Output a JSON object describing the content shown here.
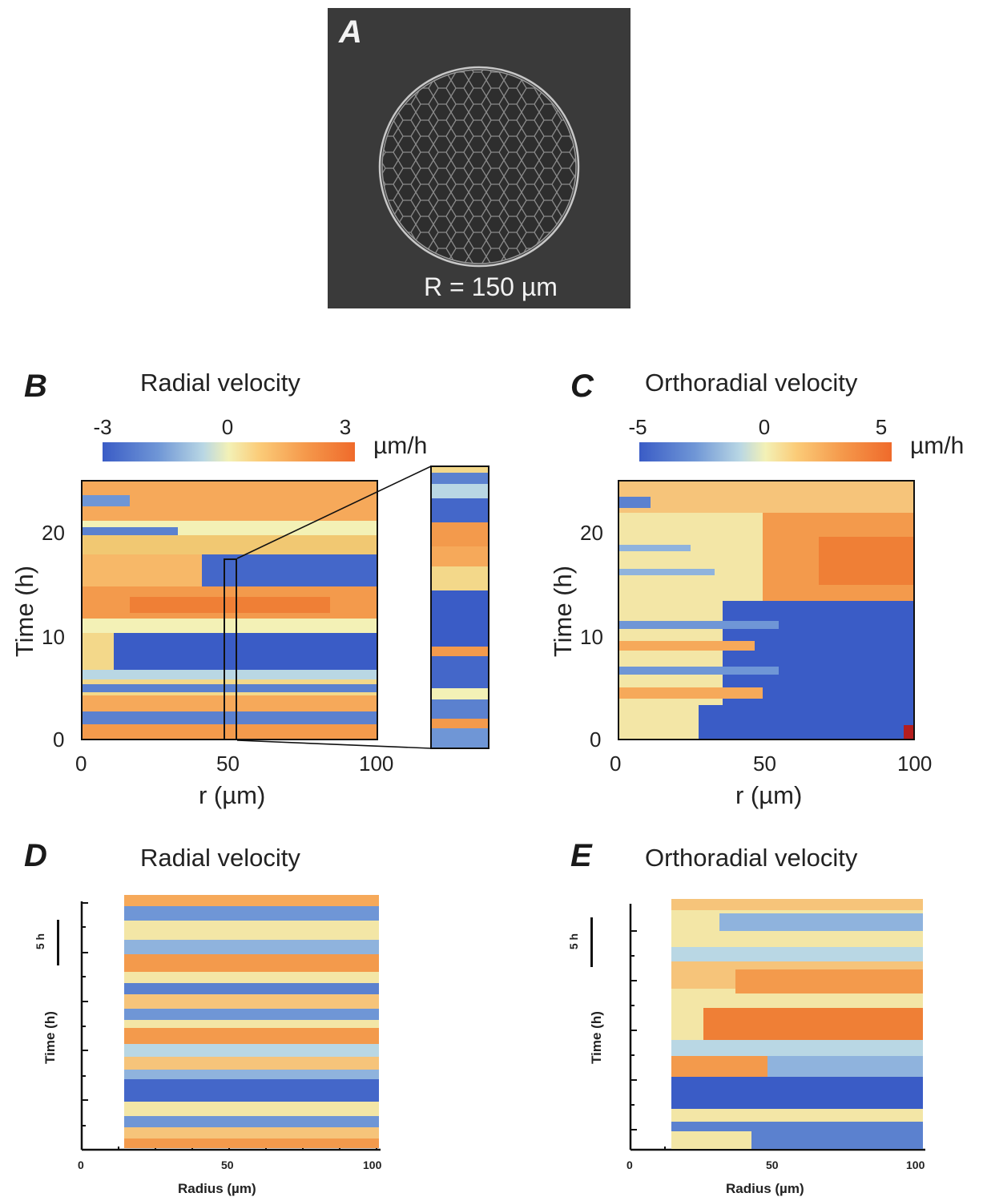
{
  "figure": {
    "panel_a": {
      "letter": "A",
      "caption": "R = 150 µm"
    },
    "panel_b": {
      "letter": "B",
      "title": "Radial velocity",
      "colorbar": {
        "ticks": [
          "-3",
          "0",
          "3"
        ],
        "unit": "µm/h"
      },
      "x_ticks": [
        "0",
        "50",
        "100"
      ],
      "y_ticks": [
        "0",
        "10",
        "20"
      ],
      "xlabel": "r (µm)",
      "ylabel": "Time (h)"
    },
    "panel_c": {
      "letter": "C",
      "title": "Orthoradial velocity",
      "colorbar": {
        "ticks": [
          "-5",
          "0",
          "5"
        ],
        "unit": "µm/h"
      },
      "x_ticks": [
        "0",
        "50",
        "100"
      ],
      "y_ticks": [
        "0",
        "10",
        "20"
      ],
      "xlabel": "r (µm)",
      "ylabel": "Time (h)"
    },
    "panel_d": {
      "letter": "D",
      "title": "Radial velocity",
      "scale_bar": "5 h",
      "x_ticks": [
        "0",
        "50",
        "100"
      ],
      "xlabel": "Radius (µm)",
      "ylabel": "Time (h)"
    },
    "panel_e": {
      "letter": "E",
      "title": "Orthoradial velocity",
      "scale_bar": "5 h",
      "x_ticks": [
        "0",
        "50",
        "100"
      ],
      "xlabel": "Radius (µm)",
      "ylabel": "Time (h)"
    }
  },
  "chart_data": [
    {
      "type": "heatmap",
      "title": "Radial velocity",
      "xlabel": "r (µm)",
      "ylabel": "Time (h)",
      "xlim": [
        0,
        100
      ],
      "ylim": [
        0,
        25
      ],
      "colorbar": {
        "min": -3,
        "max": 3,
        "unit": "µm/h"
      }
    },
    {
      "type": "heatmap",
      "title": "Orthoradial velocity",
      "xlabel": "r (µm)",
      "ylabel": "Time (h)",
      "xlim": [
        0,
        100
      ],
      "ylim": [
        0,
        25
      ],
      "colorbar": {
        "min": -5,
        "max": 5,
        "unit": "µm/h"
      }
    },
    {
      "type": "heatmap",
      "title": "Radial velocity",
      "xlabel": "Radius (µm)",
      "ylabel": "Time (h)",
      "xlim": [
        0,
        100
      ]
    },
    {
      "type": "heatmap",
      "title": "Orthoradial velocity",
      "xlabel": "Radius (µm)",
      "ylabel": "Time (h)",
      "xlim": [
        0,
        100
      ]
    }
  ],
  "colors": {
    "blue": "#3a5cc6",
    "light_blue": "#8fb3dd",
    "pale": "#f3f1b6",
    "orange": "#f59a4c",
    "red_orange": "#ef6a2b",
    "image_bg": "#3a3a3a"
  }
}
